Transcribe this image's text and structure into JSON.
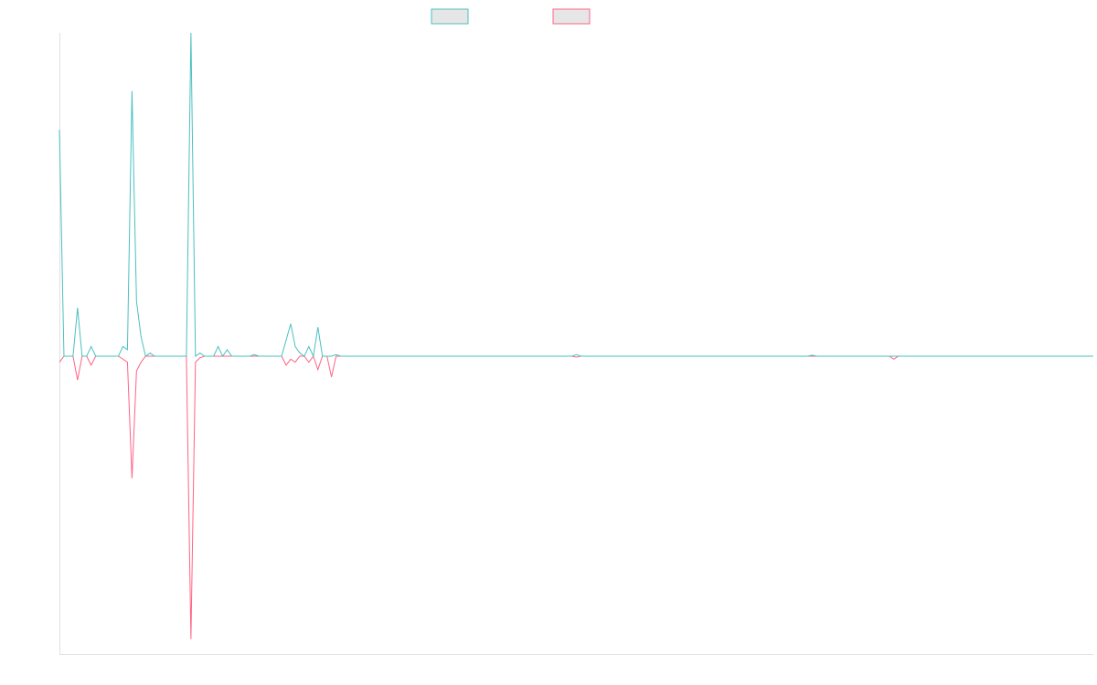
{
  "chart_data": {
    "type": "line",
    "title": "",
    "xlabel": "",
    "ylabel": "",
    "grid": false,
    "legend_placement": "top-center",
    "x_count": 229,
    "ylim": [
      -1.0,
      1.0
    ],
    "colors": {
      "positive": "#4bc0c0",
      "negative": "#ff6384",
      "legend_fill": "#e6e6e6",
      "axis": "#e0e0e0"
    },
    "series": [
      {
        "key": "positive",
        "points": [
          [
            0,
            0.7
          ],
          [
            1,
            0.0
          ],
          [
            2,
            0.0
          ],
          [
            3,
            0.0
          ],
          [
            4,
            0.15
          ],
          [
            5,
            0.0
          ],
          [
            6,
            0.0
          ],
          [
            7,
            0.03
          ],
          [
            8,
            0.0
          ],
          [
            13,
            0.0
          ],
          [
            14,
            0.03
          ],
          [
            15,
            0.02
          ],
          [
            16,
            0.82
          ],
          [
            17,
            0.17
          ],
          [
            18,
            0.06
          ],
          [
            19,
            0.0
          ],
          [
            20,
            0.01
          ],
          [
            21,
            0.0
          ],
          [
            28,
            0.0
          ],
          [
            29,
            1.0
          ],
          [
            30,
            0.0
          ],
          [
            31,
            0.01
          ],
          [
            32,
            0.0
          ],
          [
            34,
            0.0
          ],
          [
            35,
            0.03
          ],
          [
            36,
            0.0
          ],
          [
            37,
            0.02
          ],
          [
            38,
            0.0
          ],
          [
            42,
            0.0
          ],
          [
            43,
            0.005
          ],
          [
            44,
            0.0
          ],
          [
            49,
            0.0
          ],
          [
            50,
            0.05
          ],
          [
            51,
            0.1
          ],
          [
            52,
            0.03
          ],
          [
            53,
            0.01
          ],
          [
            54,
            0.0
          ],
          [
            55,
            0.03
          ],
          [
            56,
            0.0
          ],
          [
            57,
            0.09
          ],
          [
            58,
            0.0
          ],
          [
            60,
            0.0
          ],
          [
            61,
            0.005
          ],
          [
            62,
            0.0
          ],
          [
            113,
            0.0
          ],
          [
            114,
            0.005
          ],
          [
            115,
            0.0
          ],
          [
            165,
            0.0
          ],
          [
            166,
            0.003
          ],
          [
            167,
            0.0
          ],
          [
            228,
            0.0
          ]
        ]
      },
      {
        "key": "negative",
        "points": [
          [
            0,
            -0.02
          ],
          [
            1,
            0.0
          ],
          [
            2,
            0.0
          ],
          [
            3,
            0.0
          ],
          [
            4,
            -0.08
          ],
          [
            5,
            0.0
          ],
          [
            6,
            0.0
          ],
          [
            7,
            -0.03
          ],
          [
            8,
            0.0
          ],
          [
            13,
            0.0
          ],
          [
            14,
            -0.01
          ],
          [
            15,
            -0.02
          ],
          [
            16,
            -0.41
          ],
          [
            17,
            -0.05
          ],
          [
            18,
            -0.02
          ],
          [
            19,
            0.0
          ],
          [
            28,
            0.0
          ],
          [
            29,
            -0.95
          ],
          [
            30,
            -0.02
          ],
          [
            31,
            -0.005
          ],
          [
            32,
            0.0
          ],
          [
            49,
            0.0
          ],
          [
            50,
            -0.03
          ],
          [
            51,
            -0.01
          ],
          [
            52,
            -0.02
          ],
          [
            53,
            0.0
          ],
          [
            54,
            0.0
          ],
          [
            55,
            -0.02
          ],
          [
            56,
            0.0
          ],
          [
            57,
            -0.045
          ],
          [
            58,
            0.0
          ],
          [
            59,
            0.0
          ],
          [
            60,
            -0.07
          ],
          [
            61,
            0.0
          ],
          [
            113,
            0.0
          ],
          [
            114,
            -0.003
          ],
          [
            115,
            0.0
          ],
          [
            183,
            0.0
          ],
          [
            184,
            -0.01
          ],
          [
            185,
            0.0
          ],
          [
            228,
            0.0
          ]
        ]
      }
    ]
  }
}
